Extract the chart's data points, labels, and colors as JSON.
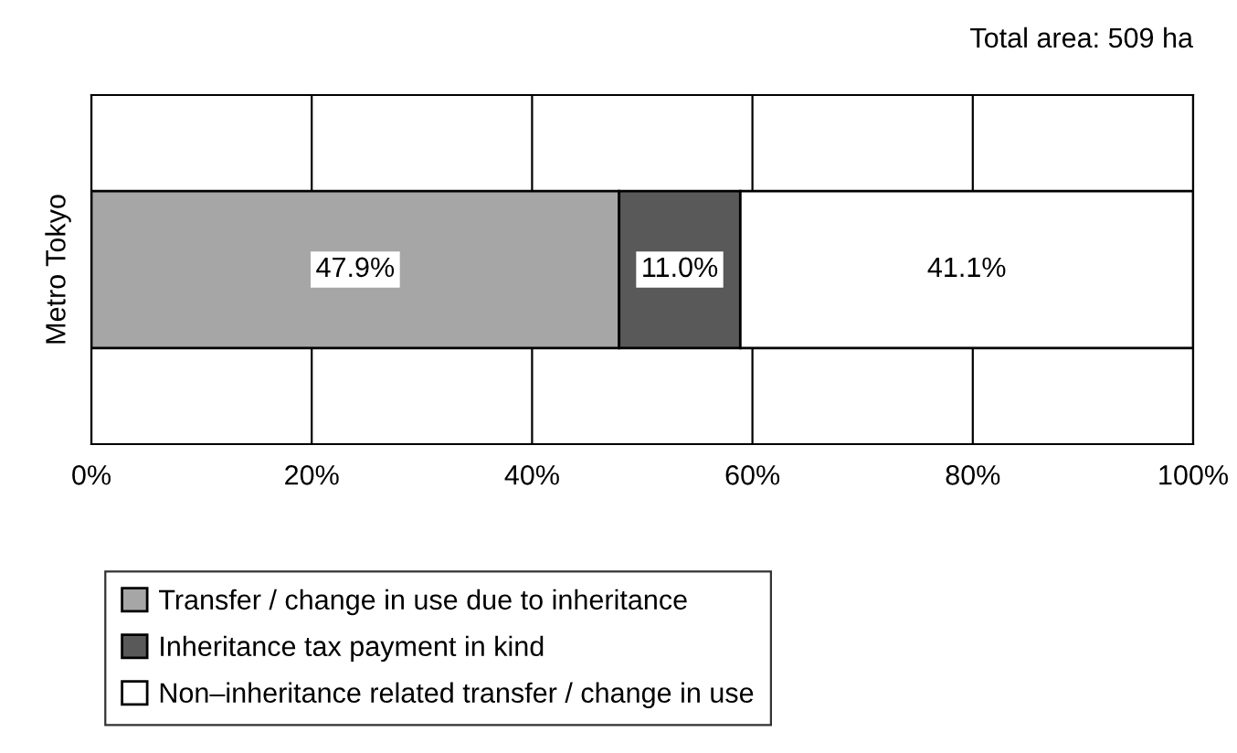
{
  "chart_data": {
    "type": "bar",
    "orientation": "horizontal",
    "stacked": true,
    "categories": [
      "Metro Tokyo"
    ],
    "series": [
      {
        "name": "Transfer / change in use due to inheritance",
        "color": "#a6a6a6",
        "values": [
          47.9
        ],
        "value_labels": [
          "47.9%"
        ]
      },
      {
        "name": "Inheritance tax payment in kind",
        "color": "#595959",
        "values": [
          11.0
        ],
        "value_labels": [
          "11.0%"
        ]
      },
      {
        "name": "Non–inheritance related transfer / change in use",
        "color": "#ffffff",
        "values": [
          41.1
        ],
        "value_labels": [
          "41.1%"
        ]
      }
    ],
    "xlim": [
      0,
      100
    ],
    "xticks": [
      {
        "value": 0,
        "label": "0%"
      },
      {
        "value": 20,
        "label": "20%"
      },
      {
        "value": 40,
        "label": "40%"
      },
      {
        "value": 60,
        "label": "60%"
      },
      {
        "value": 80,
        "label": "80%"
      },
      {
        "value": 100,
        "label": "100%"
      }
    ],
    "grid": "x",
    "legend": "bottom",
    "annotations": [
      "Total area: 509 ha"
    ]
  }
}
